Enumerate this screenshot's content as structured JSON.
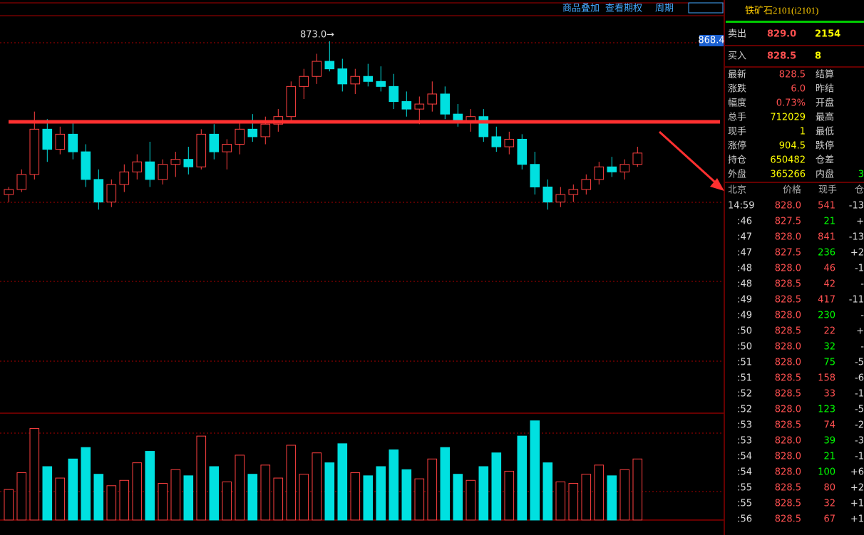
{
  "toolbar": {
    "overlay": "商品叠加",
    "options": "查看期权",
    "period": "周期"
  },
  "chart_data": {
    "type": "candlestick",
    "ylim": [
      725,
      889.4
    ],
    "high_label": "873.0→",
    "price_marker": "868.4",
    "open": [
      812,
      814,
      820,
      838,
      830,
      836,
      829,
      818,
      809,
      816,
      821,
      825,
      818,
      824,
      826,
      823,
      836,
      829,
      832,
      838,
      835,
      840,
      843,
      855,
      859,
      865,
      862,
      856,
      859,
      857,
      855,
      849,
      846,
      848,
      852,
      844,
      841,
      843,
      835,
      831,
      834,
      824,
      815,
      809,
      812,
      814,
      818,
      823,
      821,
      824
    ],
    "high": [
      815,
      822,
      845,
      842,
      839,
      841,
      832,
      822,
      818,
      824,
      828,
      833,
      826,
      829,
      831,
      838,
      840,
      834,
      841,
      844,
      843,
      846,
      857,
      862,
      868,
      873,
      866,
      862,
      864,
      863,
      860,
      853,
      851,
      857,
      855,
      848,
      846,
      846,
      839,
      837,
      836,
      829,
      818,
      815,
      816,
      820,
      825,
      827,
      826,
      831
    ],
    "low": [
      809,
      813,
      818,
      825,
      828,
      826,
      815,
      806,
      807,
      813,
      818,
      815,
      816,
      819,
      820,
      822,
      826,
      822,
      828,
      833,
      832,
      837,
      841,
      850,
      856,
      861,
      853,
      852,
      855,
      853,
      846,
      843,
      840,
      845,
      842,
      839,
      837,
      833,
      829,
      828,
      822,
      812,
      806,
      807,
      809,
      812,
      816,
      819,
      818,
      823
    ],
    "close": [
      814,
      820,
      838,
      830,
      836,
      829,
      818,
      809,
      816,
      821,
      825,
      818,
      824,
      826,
      823,
      836,
      829,
      832,
      838,
      835,
      840,
      843,
      855,
      859,
      865,
      862,
      856,
      859,
      857,
      855,
      849,
      846,
      848,
      852,
      844,
      841,
      843,
      835,
      831,
      834,
      824,
      815,
      809,
      812,
      814,
      818,
      823,
      821,
      824,
      828.5
    ],
    "vlim": [
      0,
      140
    ],
    "volume": [
      40,
      62,
      120,
      70,
      55,
      80,
      95,
      60,
      45,
      52,
      75,
      90,
      48,
      66,
      58,
      110,
      70,
      50,
      85,
      60,
      72,
      55,
      98,
      60,
      88,
      75,
      100,
      62,
      58,
      70,
      92,
      66,
      54,
      80,
      95,
      60,
      52,
      70,
      88,
      64,
      110,
      130,
      75,
      50,
      48,
      60,
      72,
      58,
      66,
      80
    ]
  },
  "quote": {
    "title": "铁矿石2101(i2101)",
    "sell": {
      "label": "卖出",
      "price": "829.0",
      "qty": "2154"
    },
    "buy": {
      "label": "买入",
      "price": "828.5",
      "qty": "8"
    },
    "rows": [
      [
        "最新",
        "828.5",
        "结算",
        ""
      ],
      [
        "涨跌",
        "6.0",
        "昨结",
        ""
      ],
      [
        "幅度",
        "0.73%",
        "开盘",
        ""
      ],
      [
        "总手",
        "712029",
        "最高",
        ""
      ],
      [
        "现手",
        "1",
        "最低",
        ""
      ],
      [
        "涨停",
        "904.5",
        "跌停",
        ""
      ],
      [
        "持仓",
        "650482",
        "仓差",
        ""
      ],
      [
        "外盘",
        "365266",
        "内盘",
        "3"
      ]
    ]
  },
  "ticks": {
    "header": [
      "北京",
      "价格",
      "现手",
      "仓"
    ],
    "rows": [
      [
        "14:59",
        "828.0",
        "541",
        "-13",
        "red"
      ],
      [
        ":46",
        "827.5",
        "21",
        "+",
        "lime"
      ],
      [
        ":47",
        "828.0",
        "841",
        "-13",
        "red"
      ],
      [
        ":47",
        "827.5",
        "236",
        "+2",
        "lime"
      ],
      [
        ":48",
        "828.0",
        "46",
        "-1",
        "red"
      ],
      [
        ":48",
        "828.5",
        "42",
        "-",
        "red"
      ],
      [
        ":49",
        "828.5",
        "417",
        "-11",
        "red"
      ],
      [
        ":49",
        "828.0",
        "230",
        "-",
        "lime"
      ],
      [
        ":50",
        "828.5",
        "22",
        "+",
        "red"
      ],
      [
        ":50",
        "828.0",
        "32",
        "-",
        "lime"
      ],
      [
        ":51",
        "828.0",
        "75",
        "-5",
        "lime"
      ],
      [
        ":51",
        "828.5",
        "158",
        "-6",
        "red"
      ],
      [
        ":52",
        "828.5",
        "33",
        "-1",
        "red"
      ],
      [
        ":52",
        "828.0",
        "123",
        "-5",
        "lime"
      ],
      [
        ":53",
        "828.5",
        "74",
        "-2",
        "red"
      ],
      [
        ":53",
        "828.0",
        "39",
        "-3",
        "lime"
      ],
      [
        ":54",
        "828.0",
        "21",
        "-1",
        "lime"
      ],
      [
        ":54",
        "828.0",
        "100",
        "+6",
        "lime"
      ],
      [
        ":55",
        "828.5",
        "80",
        "+2",
        "red"
      ],
      [
        ":55",
        "828.5",
        "32",
        "+1",
        "red"
      ],
      [
        ":56",
        "828.5",
        "67",
        "+1",
        "red"
      ]
    ]
  }
}
